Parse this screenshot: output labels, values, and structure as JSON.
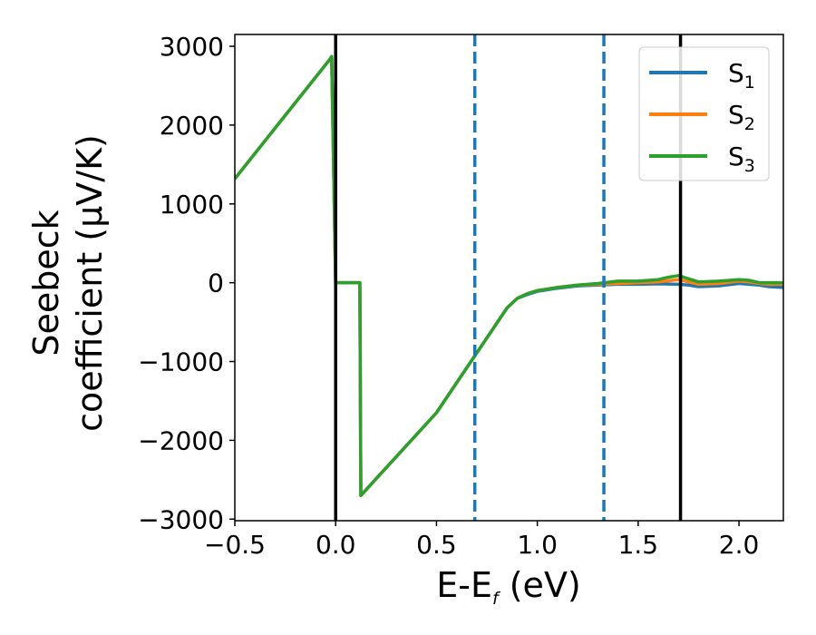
{
  "chart_data": {
    "type": "line",
    "xlabel": {
      "main": "E-E",
      "sub": "f",
      "tail": " (eV)"
    },
    "ylabel": {
      "line1": "Seebeck",
      "line2": "coefficient  (μV/K)"
    },
    "xlim": [
      -0.5,
      2.22
    ],
    "ylim": [
      -3020,
      3150
    ],
    "xticks": [
      -0.5,
      0.0,
      0.5,
      1.0,
      1.5,
      2.0
    ],
    "xtick_labels": [
      "−0.5",
      "0.0",
      "0.5",
      "1.0",
      "1.5",
      "2.0"
    ],
    "yticks": [
      -3000,
      -2000,
      -1000,
      0,
      1000,
      2000,
      3000
    ],
    "ytick_labels": [
      "−3000",
      "−2000",
      "−1000",
      "0",
      "1000",
      "2000",
      "3000"
    ],
    "grid": false,
    "legend_position": "top-right",
    "vlines": [
      {
        "x": 0.0,
        "style": "solid",
        "color": "#000000"
      },
      {
        "x": 0.69,
        "style": "dashed",
        "color": "#1f77b4"
      },
      {
        "x": 1.33,
        "style": "dashed",
        "color": "#1f77b4"
      },
      {
        "x": 1.71,
        "style": "solid",
        "color": "#000000"
      }
    ],
    "series": [
      {
        "name": "S",
        "sub": "1",
        "color": "#1f77b4",
        "x": [
          -0.5,
          -0.03,
          -0.02,
          0.0,
          0.12,
          0.125,
          0.5,
          0.85,
          0.9,
          0.95,
          1.0,
          1.1,
          1.2,
          1.3,
          1.4,
          1.5,
          1.6,
          1.7,
          1.75,
          1.8,
          1.9,
          2.0,
          2.05,
          2.1,
          2.15,
          2.22
        ],
        "y": [
          1320,
          2830,
          2870,
          0,
          0,
          -2700,
          -1650,
          -320,
          -200,
          -150,
          -110,
          -70,
          -40,
          -30,
          -20,
          -20,
          -15,
          -20,
          -30,
          -50,
          -40,
          -10,
          -20,
          -30,
          -50,
          -60
        ]
      },
      {
        "name": "S",
        "sub": "2",
        "color": "#ff7f0e",
        "x": [
          -0.5,
          -0.03,
          -0.02,
          0.0,
          0.12,
          0.125,
          0.5,
          0.85,
          0.9,
          0.95,
          1.0,
          1.1,
          1.2,
          1.3,
          1.4,
          1.5,
          1.6,
          1.7,
          1.75,
          1.8,
          1.9,
          2.0,
          2.05,
          2.1,
          2.15,
          2.22
        ],
        "y": [
          1320,
          2830,
          2870,
          0,
          0,
          -2700,
          -1650,
          -320,
          -200,
          -140,
          -100,
          -60,
          -30,
          -20,
          -10,
          0,
          10,
          40,
          10,
          -20,
          -10,
          20,
          10,
          -10,
          -20,
          -20
        ]
      },
      {
        "name": "S",
        "sub": "3",
        "color": "#2ca02c",
        "x": [
          -0.5,
          -0.03,
          -0.02,
          0.0,
          0.12,
          0.125,
          0.5,
          0.85,
          0.9,
          0.95,
          1.0,
          1.1,
          1.2,
          1.3,
          1.4,
          1.5,
          1.6,
          1.65,
          1.7,
          1.75,
          1.8,
          1.9,
          2.0,
          2.05,
          2.1,
          2.15,
          2.22
        ],
        "y": [
          1320,
          2830,
          2870,
          0,
          0,
          -2700,
          -1650,
          -320,
          -200,
          -140,
          -100,
          -60,
          -30,
          -10,
          20,
          20,
          40,
          70,
          90,
          50,
          10,
          20,
          40,
          30,
          0,
          0,
          0
        ]
      }
    ]
  }
}
